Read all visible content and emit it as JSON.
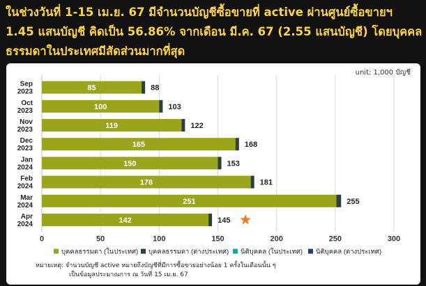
{
  "headline": "ในช่วงวันที่ 1-15  เม.ย. 67 มีจำนวนบัญชีซื้อขายที่ active ผ่านศูนย์ซื้อขายฯ 1.45 แสนบัญชี คิดเป็น 56.86% จากเดือน มี.ค. 67 (2.55 แสนบัญชี) โดยบุคคลธรรมดาในประเทศมีสัดส่วนมากที่สุด",
  "unit": "unit: 1,000 บัญชี",
  "note": {
    "line1": "หมายเหตุ: จำนวนบัญชี active หมายถึงบัญชีที่มีการซื้อขายอย่างน้อย 1 ครั้งในเดือนนั้น ๆ",
    "line2": "เป็นข้อมูลประมาณการ ณ วันที่ 15 เม.ย. 67"
  },
  "colors": {
    "background": "#111111",
    "headline": "#ffd44a",
    "domestic_individual": "#9aa51c",
    "foreign_individual": "#2f3f3f",
    "domestic_juristic": "#19a9a0",
    "foreign_juristic": "#22406e",
    "star": "#f07b2b"
  },
  "chart_data": {
    "type": "bar",
    "orientation": "horizontal",
    "stacked": true,
    "categories": [
      {
        "line1": "Sep",
        "line2": "2023"
      },
      {
        "line1": "Oct",
        "line2": "2023"
      },
      {
        "line1": "Nov",
        "line2": "2023"
      },
      {
        "line1": "Dec",
        "line2": "2023"
      },
      {
        "line1": "Jan",
        "line2": "2024"
      },
      {
        "line1": "Feb",
        "line2": "2024"
      },
      {
        "line1": "Mar",
        "line2": "2024"
      },
      {
        "line1": "Apr",
        "line2": "2024"
      }
    ],
    "series": [
      {
        "name": "บุคคลธรรมดา (ในประเทศ)",
        "color": "#9aa51c",
        "values": [
          85,
          100,
          119,
          165,
          150,
          178,
          251,
          142
        ]
      },
      {
        "name": "บุคคลธรรมดา (ต่างประเทศ)",
        "color": "#2f3f3f",
        "values": [
          3,
          3,
          3,
          3,
          3,
          3,
          4,
          3
        ]
      },
      {
        "name": "นิติบุคคล (ในประเทศ)",
        "color": "#19a9a0",
        "values": [
          0,
          0,
          0,
          0,
          0,
          0,
          0,
          0
        ]
      },
      {
        "name": "นิติบุคคล (ต่างประเทศ)",
        "color": "#22406e",
        "values": [
          0,
          0,
          0,
          0,
          0,
          0,
          0,
          0
        ]
      }
    ],
    "totals": [
      88,
      103,
      122,
      168,
      153,
      181,
      255,
      145
    ],
    "xlim": [
      0,
      300
    ],
    "xticks": [
      0,
      50,
      100,
      150,
      200,
      250,
      300
    ],
    "grid": true,
    "legend_position": "bottom",
    "highlight": {
      "category_index": 7,
      "marker": "star"
    }
  }
}
